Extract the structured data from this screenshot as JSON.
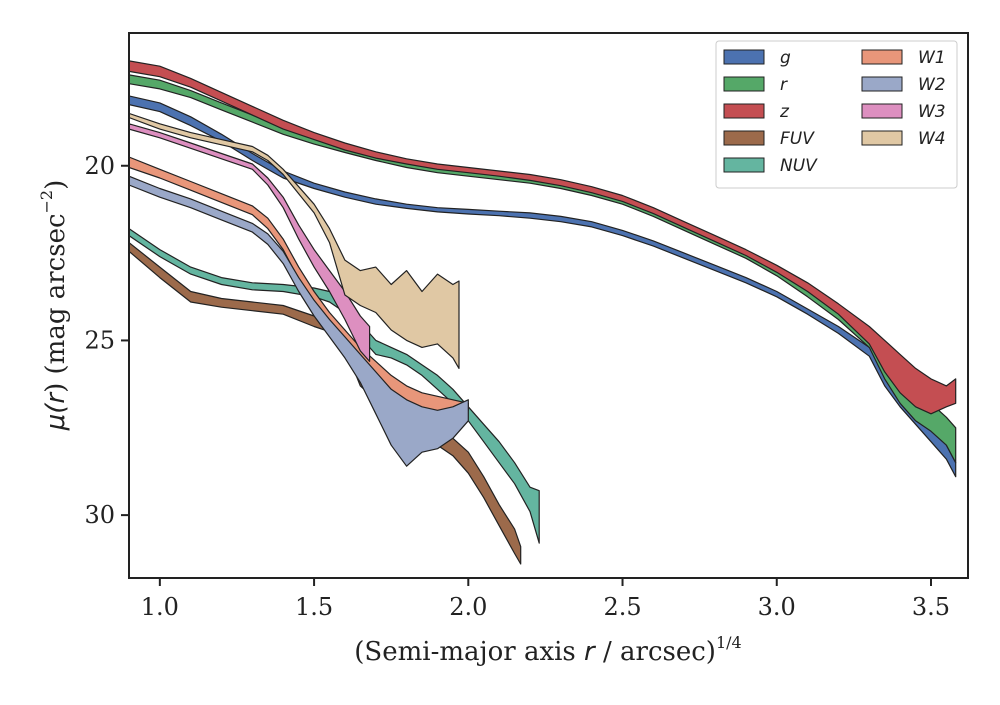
{
  "chart_data": {
    "type": "area",
    "xlabel_main": "(Semi-major axis ",
    "xlabel_var": "r",
    "xlabel_tail": " / arcsec)",
    "xlabel_sup": "1/4",
    "ylabel_main": "μ(",
    "ylabel_var": "r",
    "ylabel_tail": ") (mag arcsec",
    "ylabel_sup": "−2",
    "ylabel_end": ")",
    "xlim": [
      0.9,
      3.62
    ],
    "ylim": [
      31.8,
      16.2
    ],
    "y_inverted": true,
    "xticks": [
      1.0,
      1.5,
      2.0,
      2.5,
      3.0,
      3.5
    ],
    "xtick_labels": [
      "1.0",
      "1.5",
      "2.0",
      "2.5",
      "3.0",
      "3.5"
    ],
    "yticks": [
      20,
      25,
      30
    ],
    "ytick_labels": [
      "20",
      "25",
      "30"
    ],
    "grid": false,
    "legend_position": "top-right",
    "legend_columns": 2,
    "series": [
      {
        "name": "g",
        "color": "#4c72b0",
        "x": [
          0.9,
          1.0,
          1.1,
          1.2,
          1.3,
          1.4,
          1.5,
          1.6,
          1.7,
          1.8,
          1.9,
          2.0,
          2.1,
          2.2,
          2.3,
          2.4,
          2.5,
          2.6,
          2.7,
          2.8,
          2.9,
          3.0,
          3.1,
          3.2,
          3.3,
          3.35,
          3.4,
          3.45,
          3.5,
          3.55,
          3.58
        ],
        "lower": [
          18.0,
          18.2,
          18.6,
          19.1,
          19.65,
          20.15,
          20.5,
          20.75,
          20.95,
          21.1,
          21.2,
          21.25,
          21.3,
          21.35,
          21.45,
          21.6,
          21.85,
          22.15,
          22.5,
          22.85,
          23.2,
          23.6,
          24.1,
          24.6,
          25.2,
          25.7,
          26.2,
          26.7,
          27.3,
          28.0,
          28.5
        ],
        "upper": [
          18.25,
          18.45,
          18.85,
          19.3,
          19.85,
          20.35,
          20.65,
          20.9,
          21.1,
          21.22,
          21.32,
          21.38,
          21.43,
          21.5,
          21.6,
          21.75,
          22.0,
          22.3,
          22.65,
          23.0,
          23.35,
          23.75,
          24.25,
          24.8,
          25.45,
          26.3,
          26.9,
          27.4,
          27.9,
          28.4,
          28.9
        ]
      },
      {
        "name": "r",
        "color": "#55a868",
        "x": [
          0.9,
          1.0,
          1.1,
          1.2,
          1.3,
          1.4,
          1.5,
          1.6,
          1.7,
          1.8,
          1.9,
          2.0,
          2.1,
          2.2,
          2.3,
          2.4,
          2.5,
          2.6,
          2.7,
          2.8,
          2.9,
          3.0,
          3.1,
          3.2,
          3.3,
          3.35,
          3.4,
          3.45,
          3.5,
          3.55,
          3.58
        ],
        "lower": [
          17.4,
          17.55,
          17.85,
          18.2,
          18.55,
          18.9,
          19.2,
          19.45,
          19.7,
          19.9,
          20.05,
          20.15,
          20.25,
          20.35,
          20.5,
          20.7,
          20.95,
          21.3,
          21.7,
          22.1,
          22.5,
          22.95,
          23.5,
          24.1,
          24.8,
          25.3,
          25.8,
          26.3,
          26.8,
          27.2,
          27.5
        ],
        "upper": [
          17.65,
          17.8,
          18.05,
          18.4,
          18.75,
          19.1,
          19.38,
          19.62,
          19.85,
          20.05,
          20.2,
          20.3,
          20.4,
          20.5,
          20.65,
          20.85,
          21.1,
          21.45,
          21.85,
          22.25,
          22.65,
          23.15,
          23.75,
          24.4,
          25.2,
          26.1,
          26.8,
          27.3,
          27.6,
          28.0,
          28.5
        ]
      },
      {
        "name": "z",
        "color": "#c44e52",
        "x": [
          0.9,
          1.0,
          1.1,
          1.2,
          1.3,
          1.4,
          1.5,
          1.6,
          1.7,
          1.8,
          1.9,
          2.0,
          2.1,
          2.2,
          2.3,
          2.4,
          2.5,
          2.6,
          2.7,
          2.8,
          2.9,
          3.0,
          3.1,
          3.2,
          3.3,
          3.35,
          3.4,
          3.45,
          3.5,
          3.55,
          3.58
        ],
        "lower": [
          17.0,
          17.15,
          17.5,
          17.9,
          18.3,
          18.7,
          19.05,
          19.35,
          19.6,
          19.8,
          19.95,
          20.05,
          20.15,
          20.25,
          20.4,
          20.6,
          20.85,
          21.2,
          21.6,
          22.0,
          22.4,
          22.85,
          23.35,
          23.95,
          24.6,
          25.0,
          25.4,
          25.8,
          26.1,
          26.3,
          26.1
        ],
        "upper": [
          17.3,
          17.45,
          17.75,
          18.15,
          18.55,
          18.95,
          19.25,
          19.55,
          19.78,
          19.95,
          20.1,
          20.2,
          20.3,
          20.42,
          20.57,
          20.77,
          21.02,
          21.37,
          21.77,
          22.17,
          22.57,
          23.05,
          23.6,
          24.25,
          25.1,
          25.9,
          26.5,
          26.9,
          27.1,
          26.9,
          26.8
        ]
      },
      {
        "name": "FUV",
        "color": "#9c6a4b",
        "x": [
          0.9,
          1.0,
          1.1,
          1.2,
          1.3,
          1.4,
          1.5,
          1.55,
          1.6,
          1.65,
          1.7,
          1.75,
          1.8,
          1.85,
          1.9,
          1.95,
          2.0,
          2.05,
          2.1,
          2.15,
          2.17
        ],
        "lower": [
          22.2,
          22.9,
          23.6,
          23.8,
          23.9,
          24.0,
          24.3,
          24.4,
          24.7,
          25.6,
          26.1,
          26.5,
          26.9,
          27.2,
          27.5,
          27.8,
          28.2,
          28.9,
          29.7,
          30.4,
          30.9
        ],
        "upper": [
          22.45,
          23.2,
          23.9,
          24.05,
          24.15,
          24.25,
          24.6,
          24.75,
          25.2,
          26.3,
          26.7,
          27.1,
          27.4,
          27.7,
          28.0,
          28.3,
          28.8,
          29.5,
          30.3,
          31.1,
          31.4
        ]
      },
      {
        "name": "NUV",
        "color": "#64b5a0",
        "x": [
          0.9,
          1.0,
          1.1,
          1.2,
          1.3,
          1.4,
          1.5,
          1.55,
          1.6,
          1.65,
          1.7,
          1.75,
          1.8,
          1.85,
          1.9,
          1.95,
          2.0,
          2.05,
          2.1,
          2.15,
          2.2,
          2.23
        ],
        "lower": [
          21.8,
          22.4,
          22.9,
          23.2,
          23.35,
          23.4,
          23.5,
          23.6,
          23.9,
          24.5,
          25.0,
          25.2,
          25.4,
          25.7,
          26.0,
          26.4,
          26.9,
          27.4,
          27.9,
          28.5,
          29.2,
          29.3
        ],
        "upper": [
          22.0,
          22.6,
          23.1,
          23.4,
          23.55,
          23.6,
          23.75,
          23.9,
          24.2,
          24.9,
          25.4,
          25.5,
          25.7,
          26.0,
          26.4,
          26.8,
          27.3,
          27.9,
          28.5,
          29.1,
          29.9,
          30.8
        ]
      },
      {
        "name": "W1",
        "color": "#e8967a",
        "x": [
          0.9,
          1.0,
          1.1,
          1.2,
          1.3,
          1.35,
          1.4,
          1.45,
          1.5,
          1.55,
          1.6,
          1.65,
          1.7,
          1.75,
          1.8,
          1.85,
          1.9,
          1.95,
          2.0
        ],
        "lower": [
          19.75,
          20.1,
          20.45,
          20.8,
          21.15,
          21.5,
          22.1,
          22.9,
          23.6,
          24.2,
          24.7,
          25.2,
          25.6,
          26.0,
          26.3,
          26.5,
          26.6,
          26.7,
          26.8
        ],
        "upper": [
          20.05,
          20.35,
          20.7,
          21.05,
          21.4,
          21.8,
          22.4,
          23.25,
          24.0,
          24.6,
          25.1,
          25.8,
          26.5,
          27.2,
          27.1,
          27.4,
          27.3,
          27.2,
          27.0
        ]
      },
      {
        "name": "W2",
        "color": "#9aa8c8",
        "x": [
          0.9,
          1.0,
          1.1,
          1.2,
          1.3,
          1.35,
          1.4,
          1.45,
          1.5,
          1.55,
          1.6,
          1.65,
          1.7,
          1.75,
          1.8,
          1.85,
          1.9,
          1.95,
          2.0
        ],
        "lower": [
          20.3,
          20.65,
          20.95,
          21.3,
          21.65,
          21.95,
          22.45,
          23.2,
          23.85,
          24.4,
          24.9,
          25.4,
          25.9,
          26.4,
          26.7,
          26.9,
          27.0,
          26.9,
          26.7
        ],
        "upper": [
          20.55,
          20.9,
          21.2,
          21.55,
          21.9,
          22.25,
          22.8,
          23.6,
          24.3,
          24.9,
          25.5,
          26.2,
          27.1,
          28.0,
          28.6,
          28.2,
          28.1,
          27.8,
          27.3
        ]
      },
      {
        "name": "W3",
        "color": "#dd8fc0",
        "x": [
          0.9,
          1.0,
          1.1,
          1.2,
          1.3,
          1.35,
          1.4,
          1.45,
          1.5,
          1.55,
          1.6,
          1.65,
          1.68
        ],
        "lower": [
          18.8,
          19.05,
          19.35,
          19.65,
          19.95,
          20.35,
          20.9,
          21.7,
          22.4,
          23.0,
          23.6,
          24.3,
          24.6
        ],
        "upper": [
          18.95,
          19.2,
          19.5,
          19.8,
          20.1,
          20.55,
          21.2,
          22.1,
          22.9,
          23.6,
          24.4,
          25.3,
          25.6
        ]
      },
      {
        "name": "W4",
        "color": "#e0c8a4",
        "x": [
          0.9,
          1.0,
          1.1,
          1.2,
          1.3,
          1.35,
          1.4,
          1.45,
          1.5,
          1.55,
          1.6,
          1.65,
          1.7,
          1.75,
          1.8,
          1.85,
          1.9,
          1.95,
          1.97
        ],
        "lower": [
          18.5,
          18.8,
          19.05,
          19.25,
          19.45,
          19.7,
          20.1,
          20.6,
          21.1,
          21.8,
          22.7,
          23.0,
          22.9,
          23.4,
          23.0,
          23.6,
          23.1,
          23.4,
          23.3
        ],
        "upper": [
          18.62,
          18.95,
          19.2,
          19.4,
          19.6,
          19.85,
          20.25,
          20.8,
          21.35,
          22.2,
          23.7,
          24.0,
          24.2,
          24.7,
          25.0,
          25.2,
          25.1,
          25.5,
          25.8
        ]
      }
    ]
  }
}
